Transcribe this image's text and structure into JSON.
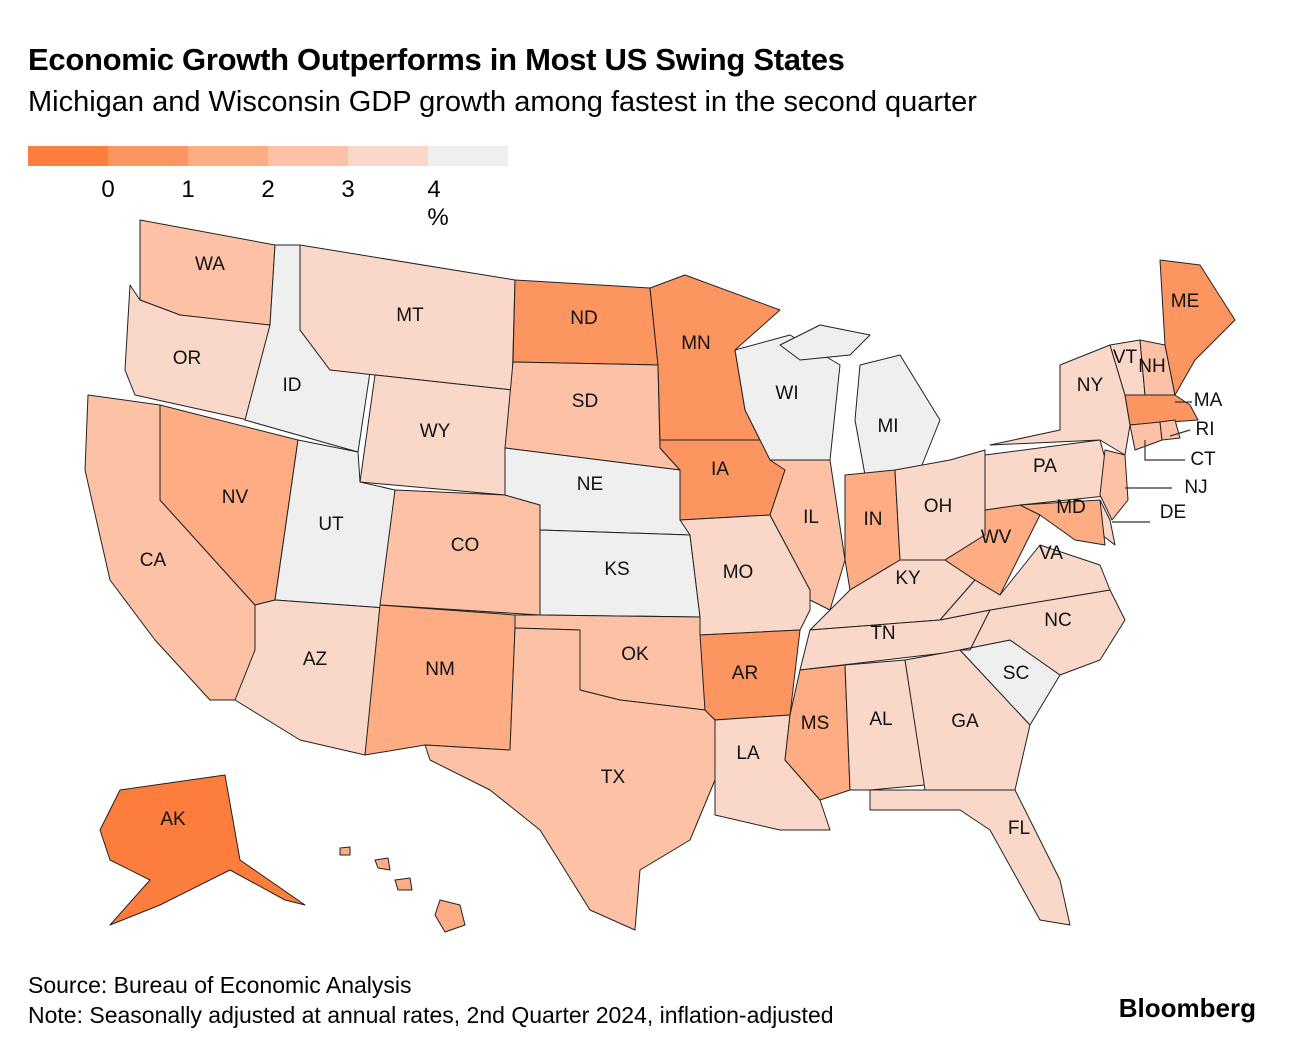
{
  "title": "Economic Growth Outperforms in Most US Swing States",
  "subtitle": "Michigan and Wisconsin GDP growth among fastest in the second quarter",
  "legend": {
    "colors": [
      "#fd7e3c",
      "#fd9560",
      "#fdac83",
      "#fdc2a6",
      "#fad8c9",
      "#efefef"
    ],
    "ticks": [
      "0",
      "1",
      "2",
      "3",
      "4 %"
    ]
  },
  "states": {
    "WA": 3,
    "OR": 4,
    "CA": 3,
    "NV": 2,
    "ID": 5,
    "MT": 4,
    "WY": 4,
    "UT": 5,
    "AZ": 4,
    "CO": 3,
    "NM": 2,
    "ND": 1,
    "SD": 3,
    "NE": 5,
    "KS": 5,
    "OK": 3,
    "TX": 3,
    "MN": 1,
    "IA": 1,
    "MO": 4,
    "AR": 1,
    "LA": 4,
    "WI": 5,
    "MI": 5,
    "IL": 3,
    "IN": 2,
    "OH": 4,
    "KY": 4,
    "TN": 4,
    "MS": 2,
    "AL": 4,
    "GA": 4,
    "FL": 4,
    "SC": 5,
    "NC": 4,
    "VA": 4,
    "WV": 2,
    "PA": 4,
    "NY": 4,
    "VT": 4,
    "NH": 3,
    "ME": 1,
    "MA": 1,
    "CT": 3,
    "RI": 3,
    "NJ": 3,
    "DE": 4,
    "MD": 2,
    "AK": 0,
    "HI": 2
  },
  "labels": [
    "WA",
    "OR",
    "CA",
    "NV",
    "ID",
    "MT",
    "WY",
    "UT",
    "AZ",
    "CO",
    "NM",
    "ND",
    "SD",
    "NE",
    "KS",
    "OK",
    "TX",
    "MN",
    "IA",
    "MO",
    "AR",
    "LA",
    "WI",
    "MI",
    "IL",
    "IN",
    "OH",
    "KY",
    "TN",
    "MS",
    "AL",
    "GA",
    "FL",
    "SC",
    "NC",
    "VA",
    "WV",
    "PA",
    "NY",
    "VT",
    "NH",
    "ME",
    "MA",
    "RI",
    "CT",
    "NJ",
    "DE",
    "MD",
    "AK"
  ],
  "footer": {
    "source": "Source: Bureau of Economic Analysis",
    "note": "Note: Seasonally adjusted at annual rates, 2nd Quarter 2024, inflation-adjusted",
    "brand": "Bloomberg"
  }
}
